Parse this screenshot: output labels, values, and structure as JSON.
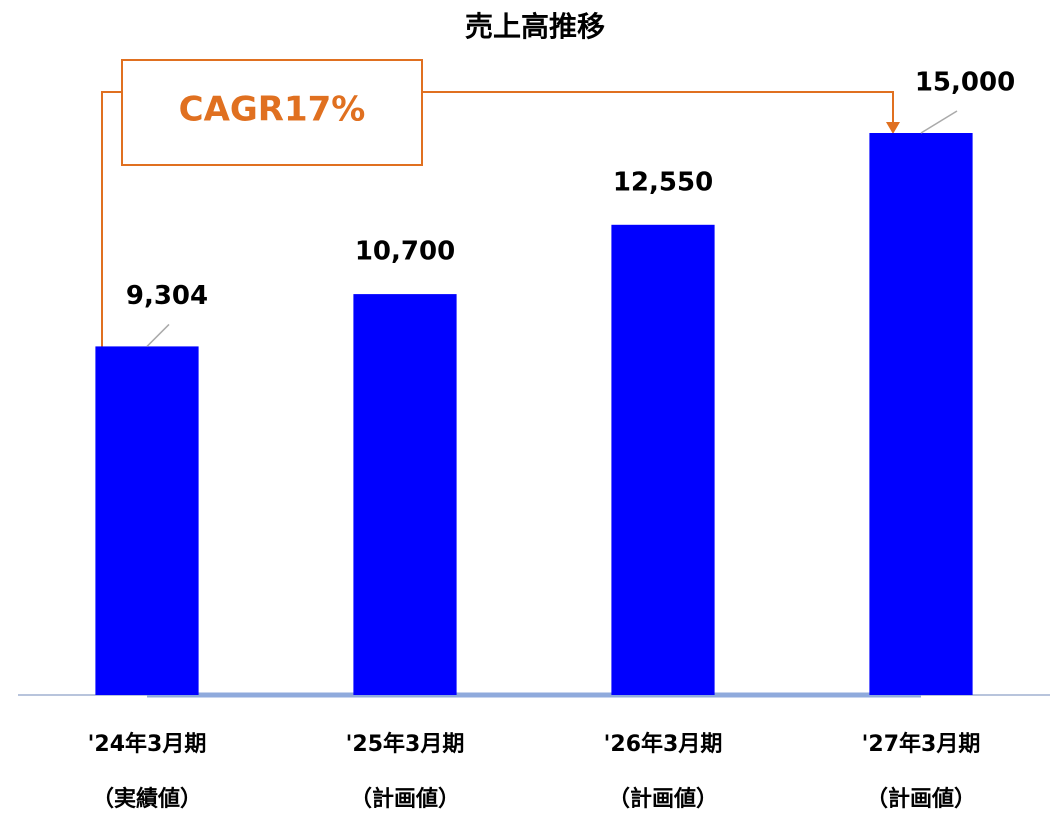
{
  "chart_data": {
    "type": "bar",
    "title": "売上高推移",
    "categories": [
      [
        "'24年3月期",
        "（実績値）"
      ],
      [
        "'25年3月期",
        "（計画値）"
      ],
      [
        "'26年3月期",
        "（計画値）"
      ],
      [
        "'27年3月期",
        "（計画値）"
      ]
    ],
    "values": [
      9304,
      10700,
      12550,
      15000
    ],
    "value_labels": [
      "9,304",
      "10,700",
      "12,550",
      "15,000"
    ],
    "color": "#0000ff",
    "ylim": [
      0,
      15000
    ],
    "annotation": "CAGR17%"
  }
}
